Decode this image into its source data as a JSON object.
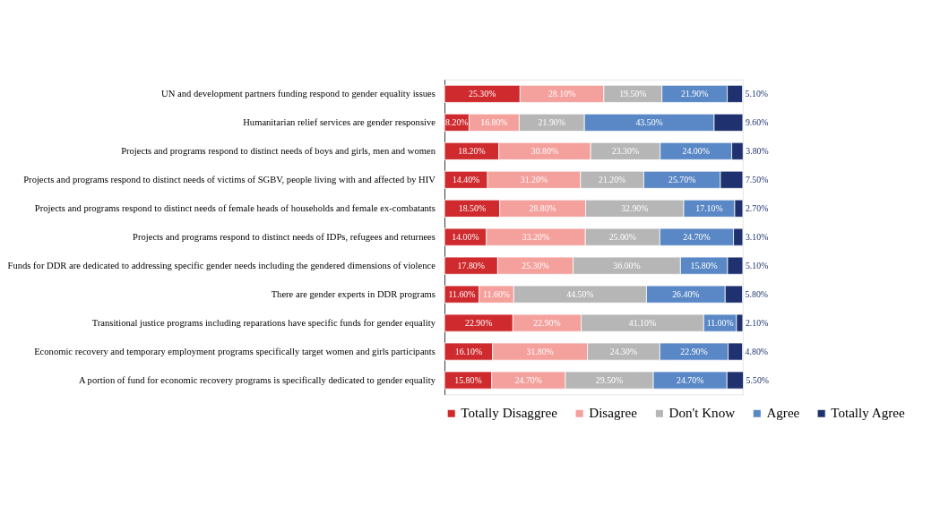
{
  "chart_data": {
    "type": "bar",
    "orientation": "horizontal",
    "stacked": true,
    "legend": "bottom",
    "tick_labels": "y",
    "grid": false,
    "xlim": [
      0,
      100
    ],
    "categories": [
      "UN and development partners funding respond to gender equality issues",
      "Humanitarian relief services are gender responsive",
      "Projects and programs respond to distinct needs of boys and girls, men and women",
      "Projects and programs respond to distinct needs of victims of SGBV, people living with and affected by HIV",
      "Projects and programs respond to distinct needs of female heads of households and female ex-combatants",
      "Projects and programs respond to distinct needs of IDPs, refugees and returnees",
      "Funds for DDR are dedicated to addressing specific gender needs including the gendered dimensions of violence",
      "There are gender experts in DDR programs",
      "Transitional justice programs including reparations have specific funds for gender equality",
      "Economic recovery and temporary employment  programs specifically target women and girls participants",
      "A portion of fund for economic recovery programs is specifically dedicated to gender equality"
    ],
    "series": [
      {
        "name": "Totally Disaggree",
        "color": "#cf2a2e",
        "values": [
          25.3,
          8.2,
          18.2,
          14.4,
          18.5,
          14.0,
          17.8,
          11.6,
          22.9,
          16.1,
          15.8
        ],
        "value_labels": [
          "25.30%",
          "8.20%",
          "18.20%",
          "14.40%",
          "18.50%",
          "14.00%",
          "17.80%",
          "11.60%",
          "22.90%",
          "16.10%",
          "15.80%"
        ]
      },
      {
        "name": "Disagree",
        "color": "#f4a09c",
        "values": [
          28.1,
          16.8,
          30.8,
          31.2,
          28.8,
          33.2,
          25.3,
          11.6,
          22.9,
          31.8,
          24.7
        ],
        "value_labels": [
          "28.10%",
          "16.80%",
          "30.80%",
          "31.20%",
          "28.80%",
          "33.20%",
          "25.30%",
          "11.60%",
          "22.90%",
          "31.80%",
          "24.70%"
        ]
      },
      {
        "name": "Don't Know",
        "color": "#b6b6b6",
        "values": [
          19.5,
          21.9,
          23.3,
          21.2,
          32.9,
          25.0,
          36.0,
          44.5,
          41.1,
          24.3,
          29.5
        ],
        "value_labels": [
          "19.50%",
          "21.90%",
          "23.30%",
          "21.20%",
          "32.90%",
          "25.00%",
          "36.00%",
          "44.50%",
          "41.10%",
          "24.30%",
          "29.50%"
        ]
      },
      {
        "name": "Agree",
        "color": "#5a88c6",
        "values": [
          21.9,
          43.5,
          24.0,
          25.7,
          17.1,
          24.7,
          15.8,
          26.4,
          11.0,
          22.9,
          24.7
        ],
        "value_labels": [
          "21.90%",
          "43.50%",
          "24.00%",
          "25.70%",
          "17.10%",
          "24.70%",
          "15.80%",
          "26.40%",
          "11.00%",
          "22.90%",
          "24.70%"
        ]
      },
      {
        "name": "Totally Agree",
        "color": "#1f316e",
        "values": [
          5.1,
          9.6,
          3.8,
          7.5,
          2.7,
          3.1,
          5.1,
          5.8,
          2.1,
          4.8,
          5.5
        ],
        "value_labels": [
          "5.10%",
          "9.60%",
          "3.80%",
          "7.50%",
          "2.70%",
          "3.10%",
          "5.10%",
          "5.80%",
          "2.10%",
          "4.80%",
          "5.50%"
        ]
      }
    ]
  }
}
